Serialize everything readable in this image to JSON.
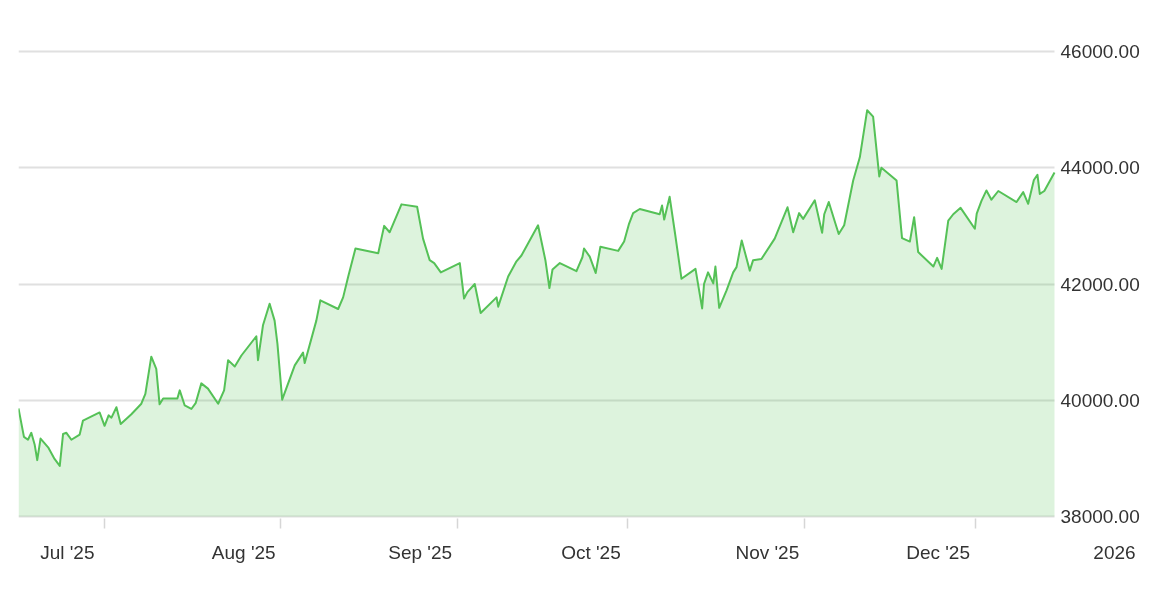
{
  "chart_data": {
    "type": "area",
    "color": "#55c157",
    "grid": "y",
    "xlim": [
      "2025-06-22T10:00",
      "2026-01-01"
    ],
    "xticks": [
      {
        "value": "2025-07-01",
        "label": "Jul '25"
      },
      {
        "value": "2025-08-01",
        "label": "Aug '25"
      },
      {
        "value": "2025-09-01",
        "label": "Sep '25"
      },
      {
        "value": "2025-10-01",
        "label": "Oct '25"
      },
      {
        "value": "2025-11-01",
        "label": "Nov '25"
      },
      {
        "value": "2025-12-01",
        "label": "Dec '25"
      },
      {
        "value": "2026-01-01",
        "label": "2026"
      },
      {
        "value": "2025-07-07T12:00",
        "label": null
      },
      {
        "value": "2025-08-07T12:00",
        "label": null
      },
      {
        "value": "2025-09-07T12:00",
        "label": null
      },
      {
        "value": "2025-10-07T12:00",
        "label": null
      },
      {
        "value": "2025-11-07T12:00",
        "label": null
      },
      {
        "value": "2025-12-07T12:00",
        "label": null
      }
    ],
    "ylim": [
      38000,
      46000
    ],
    "yticks": [
      {
        "value": 38000,
        "label": "38000.00"
      },
      {
        "value": 40000,
        "label": "40000.00"
      },
      {
        "value": 42000,
        "label": "42000.00"
      },
      {
        "value": 44000,
        "label": "44000.00"
      },
      {
        "value": 46000,
        "label": "46000.00"
      }
    ],
    "x": [
      "2025-06-22T10:00",
      "2025-06-23T09:00",
      "2025-06-24T02:00",
      "2025-06-24T16:00",
      "2025-06-25T06:00",
      "2025-06-25T17:00",
      "2025-06-26T07:00",
      "2025-06-27T15:00",
      "2025-06-28T18:00",
      "2025-06-29T16:00",
      "2025-06-30T06:00",
      "2025-06-30T20:00",
      "2025-07-01T17:00",
      "2025-07-03T04:00",
      "2025-07-03T18:00",
      "2025-07-06T16:00",
      "2025-07-07T13:00",
      "2025-07-08T06:00",
      "2025-07-08T18:00",
      "2025-07-09T15:00",
      "2025-07-10T09:00",
      "2025-07-12T06:00",
      "2025-07-14T00:00",
      "2025-07-14T17:00",
      "2025-07-15T18:00",
      "2025-07-16T15:00",
      "2025-07-17T05:00",
      "2025-07-17T20:00",
      "2025-07-20T08:00",
      "2025-07-20T18:00",
      "2025-07-21T15:00",
      "2025-07-22T19:00",
      "2025-07-23T13:00",
      "2025-07-24T13:00",
      "2025-07-25T17:00",
      "2025-07-27T12:00",
      "2025-07-28T13:00",
      "2025-07-29T06:00",
      "2025-07-30T10:00",
      "2025-07-31T14:00",
      "2025-08-03T05:00",
      "2025-08-03T12:00",
      "2025-08-04T09:00",
      "2025-08-05T13:00",
      "2025-08-06T10:00",
      "2025-08-06T22:00",
      "2025-08-07T18:00",
      "2025-08-09T23:00",
      "2025-08-11T10:00",
      "2025-08-11T17:00",
      "2025-08-13T18:00",
      "2025-08-14T11:00",
      "2025-08-17T14:00",
      "2025-08-18T11:00",
      "2025-08-19T08:00",
      "2025-08-20T15:00",
      "2025-08-24T15:00",
      "2025-08-25T16:00",
      "2025-08-26T15:00",
      "2025-08-28T17:00",
      "2025-08-31T11:00",
      "2025-09-01T12:00",
      "2025-09-02T16:00",
      "2025-09-03T11:00",
      "2025-09-04T15:00",
      "2025-09-07T23:00",
      "2025-09-08T17:00",
      "2025-09-09T07:00",
      "2025-09-10T14:00",
      "2025-09-11T15:00",
      "2025-09-14T10:00",
      "2025-09-14T17:00",
      "2025-09-16T11:00",
      "2025-09-17T22:00",
      "2025-09-18T19:00",
      "2025-09-21T17:00",
      "2025-09-23T00:00",
      "2025-09-23T17:00",
      "2025-09-24T06:00",
      "2025-09-25T13:00",
      "2025-09-28T11:00",
      "2025-09-29T12:00",
      "2025-09-29T19:00",
      "2025-09-30T19:00",
      "2025-10-01T20:00",
      "2025-10-02T16:00",
      "2025-10-05T19:00",
      "2025-10-06T20:00",
      "2025-10-07T17:00",
      "2025-10-08T10:00",
      "2025-10-09T14:00",
      "2025-10-13T02:00",
      "2025-10-13T12:00",
      "2025-10-13T21:00",
      "2025-10-14T20:00",
      "2025-10-15T18:00",
      "2025-10-16T22:00",
      "2025-10-19T09:00",
      "2025-10-20T13:00",
      "2025-10-20T21:00",
      "2025-10-21T14:00",
      "2025-10-22T12:00",
      "2025-10-22T21:00",
      "2025-10-23T13:00",
      "2025-10-24T20:00",
      "2025-10-26T00:00",
      "2025-10-26T14:00",
      "2025-10-27T12:00",
      "2025-10-28T22:00",
      "2025-10-29T12:00",
      "2025-10-30T23:00",
      "2025-11-02T07:00",
      "2025-11-04T13:00",
      "2025-11-05T13:00",
      "2025-11-06T14:00",
      "2025-11-07T07:00",
      "2025-11-09T08:00",
      "2025-11-10T15:00",
      "2025-11-11T00:00",
      "2025-11-11T19:00",
      "2025-11-12T23:00",
      "2025-11-13T13:00",
      "2025-11-14T12:00",
      "2025-11-16T02:00",
      "2025-11-17T06:00",
      "2025-11-18T13:00",
      "2025-11-19T14:00",
      "2025-11-20T16:00",
      "2025-11-21T01:00",
      "2025-11-23T17:00",
      "2025-11-24T16:00",
      "2025-11-26T01:00",
      "2025-11-26T19:00",
      "2025-11-27T12:00",
      "2025-11-30T04:00",
      "2025-11-30T20:00",
      "2025-12-01T15:00",
      "2025-12-02T19:00",
      "2025-12-03T16:00",
      "2025-12-04T23:00",
      "2025-12-07T11:00",
      "2025-12-07T19:00",
      "2025-12-08T15:00",
      "2025-12-09T12:00",
      "2025-12-10T09:00",
      "2025-12-11T14:00",
      "2025-12-14T19:00",
      "2025-12-15T23:00",
      "2025-12-16T20:00",
      "2025-12-17T20:00",
      "2025-12-18T11:00",
      "2025-12-18T21:00",
      "2025-12-19T16:00",
      "2025-12-21T11:00"
    ],
    "values": [
      39860,
      39370,
      39320,
      39440,
      39240,
      38970,
      39340,
      39190,
      38990,
      38870,
      39420,
      39440,
      39320,
      39410,
      39650,
      39790,
      39560,
      39740,
      39700,
      39880,
      39590,
      39760,
      39940,
      40110,
      40750,
      40540,
      39930,
      40030,
      40030,
      40170,
      39910,
      39850,
      39950,
      40290,
      40200,
      39940,
      40170,
      40690,
      40580,
      40770,
      41100,
      40690,
      41290,
      41660,
      41370,
      40970,
      40010,
      40600,
      40820,
      40640,
      41370,
      41720,
      41570,
      41770,
      42120,
      42610,
      42530,
      43000,
      42890,
      43370,
      43330,
      42780,
      42410,
      42360,
      42200,
      42360,
      41750,
      41860,
      42000,
      41500,
      41770,
      41610,
      42130,
      42390,
      42490,
      43010,
      42410,
      41930,
      42250,
      42360,
      42220,
      42460,
      42610,
      42470,
      42190,
      42640,
      42570,
      42730,
      43040,
      43220,
      43290,
      43200,
      43350,
      43110,
      43500,
      42890,
      42090,
      42260,
      41580,
      42000,
      42200,
      42010,
      42300,
      41590,
      41890,
      42200,
      42290,
      42750,
      42230,
      42410,
      42430,
      42780,
      43320,
      42890,
      43220,
      43120,
      43440,
      42880,
      43200,
      43410,
      43040,
      42860,
      43010,
      43780,
      44180,
      44990,
      44880,
      43850,
      44000,
      43780,
      42790,
      42730,
      43150,
      42550,
      42300,
      42450,
      42260,
      43090,
      43200,
      43310,
      42950,
      43210,
      43430,
      43610,
      43450,
      43600,
      43410,
      43580,
      43380,
      43790,
      43880,
      43550,
      43600,
      43920
    ]
  }
}
